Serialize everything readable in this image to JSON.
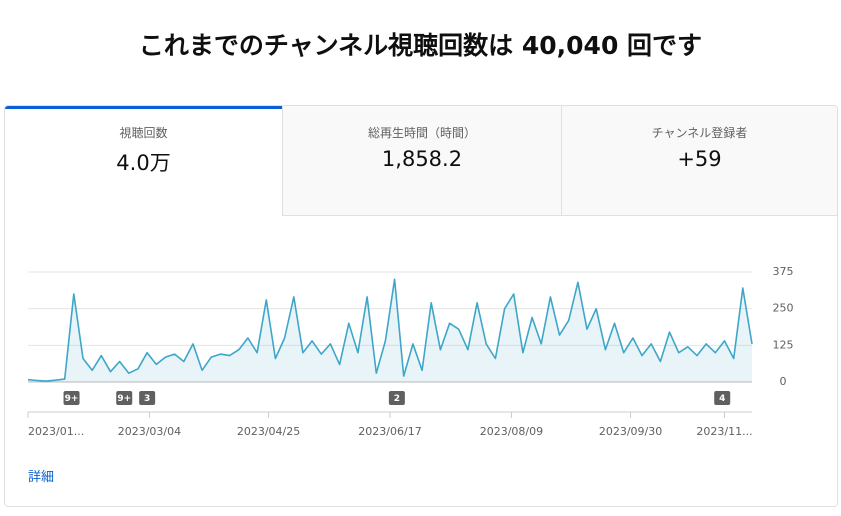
{
  "header": {
    "title": "これまでのチャンネル視聴回数は 40,040 回です"
  },
  "tabs": [
    {
      "label": "視聴回数",
      "value": "4.0万"
    },
    {
      "label": "総再生時間（時間）",
      "value": "1,858.2"
    },
    {
      "label": "チャンネル登録者",
      "value": "+59"
    }
  ],
  "chart_data": {
    "type": "line",
    "x": [
      "2023/01/10",
      "2023/01/14",
      "2023/01/18",
      "2023/01/22",
      "2023/01/26",
      "2023/01/30",
      "2023/02/03",
      "2023/02/07",
      "2023/02/11",
      "2023/02/15",
      "2023/02/19",
      "2023/02/23",
      "2023/02/27",
      "2023/03/03",
      "2023/03/07",
      "2023/03/11",
      "2023/03/15",
      "2023/03/19",
      "2023/03/23",
      "2023/03/27",
      "2023/03/31",
      "2023/04/04",
      "2023/04/08",
      "2023/04/12",
      "2023/04/16",
      "2023/04/20",
      "2023/04/24",
      "2023/04/28",
      "2023/05/02",
      "2023/05/06",
      "2023/05/10",
      "2023/05/14",
      "2023/05/18",
      "2023/05/22",
      "2023/05/26",
      "2023/05/30",
      "2023/06/03",
      "2023/06/07",
      "2023/06/11",
      "2023/06/15",
      "2023/06/19",
      "2023/06/23",
      "2023/06/27",
      "2023/07/01",
      "2023/07/05",
      "2023/07/09",
      "2023/07/13",
      "2023/07/17",
      "2023/07/21",
      "2023/07/25",
      "2023/07/29",
      "2023/08/02",
      "2023/08/06",
      "2023/08/10",
      "2023/08/14",
      "2023/08/18",
      "2023/08/22",
      "2023/08/26",
      "2023/08/30",
      "2023/09/03",
      "2023/09/07",
      "2023/09/11",
      "2023/09/15",
      "2023/09/19",
      "2023/09/23",
      "2023/09/27",
      "2023/10/01",
      "2023/10/05",
      "2023/10/09",
      "2023/10/13",
      "2023/10/17",
      "2023/10/21",
      "2023/10/25",
      "2023/10/29",
      "2023/11/02",
      "2023/11/06",
      "2023/11/10",
      "2023/11/14",
      "2023/11/18",
      "2023/11/22"
    ],
    "series": [
      {
        "color": "#3ea6c9",
        "values": [
          8,
          5,
          3,
          6,
          10,
          300,
          80,
          40,
          90,
          35,
          70,
          30,
          45,
          100,
          60,
          85,
          95,
          70,
          130,
          40,
          85,
          95,
          90,
          110,
          150,
          100,
          280,
          80,
          150,
          290,
          100,
          140,
          95,
          130,
          60,
          200,
          100,
          290,
          30,
          140,
          350,
          20,
          130,
          40,
          270,
          110,
          200,
          180,
          110,
          270,
          130,
          80,
          250,
          300,
          100,
          220,
          130,
          290,
          160,
          210,
          340,
          180,
          250,
          110,
          200,
          100,
          150,
          90,
          130,
          70,
          170,
          100,
          120,
          90,
          130,
          100,
          140,
          80,
          320,
          130
        ]
      }
    ],
    "xlim": [
      "2023/01/10",
      "2023/11/22"
    ],
    "xticks": [
      {
        "value": "2023/01/10",
        "label": "2023/01..."
      },
      {
        "value": "2023/03/04",
        "label": "2023/03/04"
      },
      {
        "value": "2023/04/25",
        "label": "2023/04/25"
      },
      {
        "value": "2023/06/17",
        "label": "2023/06/17"
      },
      {
        "value": "2023/08/09",
        "label": "2023/08/09"
      },
      {
        "value": "2023/09/30",
        "label": "2023/09/30"
      },
      {
        "value": "2023/11/10",
        "label": "2023/11..."
      }
    ],
    "ylim": [
      0,
      375
    ],
    "yticks": [
      0,
      125,
      250,
      375
    ],
    "grid": true,
    "markers": [
      {
        "x": "2023/01/29",
        "label": "9+"
      },
      {
        "x": "2023/02/21",
        "label": "9+"
      },
      {
        "x": "2023/03/03",
        "label": "3"
      },
      {
        "x": "2023/06/20",
        "label": "2"
      },
      {
        "x": "2023/11/09",
        "label": "4"
      }
    ]
  },
  "link": "詳細"
}
